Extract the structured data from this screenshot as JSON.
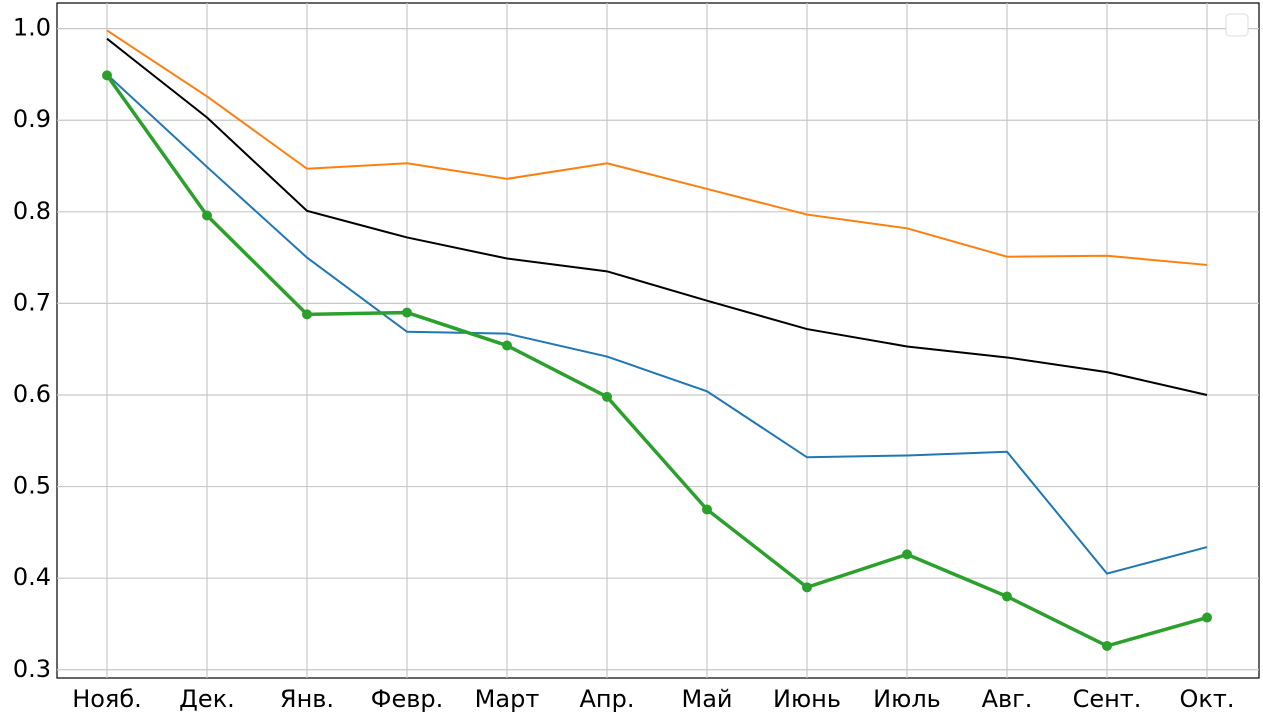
{
  "chart_data": {
    "type": "line",
    "categories": [
      "Нояб.",
      "Дек.",
      "Янв.",
      "Февр.",
      "Март",
      "Апр.",
      "Май",
      "Июнь",
      "Июль",
      "Авг.",
      "Сент.",
      "Окт."
    ],
    "series": [
      {
        "color": "#1f77b4",
        "values": [
          0.95,
          0.849,
          0.75,
          0.669,
          0.667,
          0.642,
          0.604,
          0.532,
          0.534,
          0.538,
          0.405,
          0.434
        ]
      },
      {
        "color": "#ff7f0e",
        "values": [
          0.998,
          0.926,
          0.847,
          0.853,
          0.836,
          0.853,
          0.825,
          0.797,
          0.782,
          0.751,
          0.752,
          0.742
        ]
      },
      {
        "color": "#000000",
        "values": [
          0.989,
          0.903,
          0.801,
          0.772,
          0.749,
          0.735,
          0.703,
          0.672,
          0.653,
          0.641,
          0.625,
          0.6
        ]
      },
      {
        "color": "#2ca02c",
        "markers": true,
        "values": [
          0.949,
          0.796,
          0.688,
          0.69,
          0.654,
          0.598,
          0.475,
          0.39,
          0.426,
          0.38,
          0.326,
          0.357
        ]
      }
    ],
    "ylim": [
      0.291,
      1.028
    ],
    "yticks": [
      0.3,
      0.4,
      0.5,
      0.6,
      0.7,
      0.8,
      0.9,
      {
        "value": 1,
        "label": "1.0"
      }
    ],
    "grid": true,
    "legend": "upper right"
  }
}
